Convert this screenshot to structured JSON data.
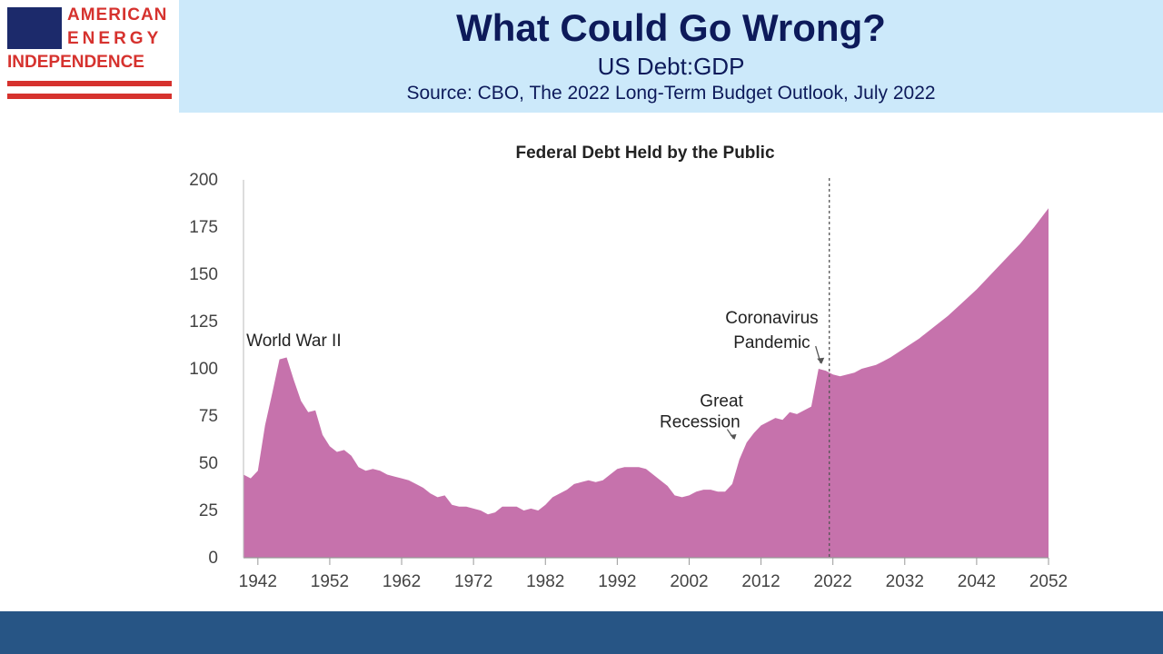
{
  "header": {
    "logo_line1": "AMERICAN",
    "logo_line2": "ENERGY",
    "logo_line3": "INDEPENDENCE",
    "title": "What Could Go Wrong?",
    "subtitle": "US Debt:GDP",
    "source": "Source: CBO, The 2022 Long-Term Budget Outlook, July 2022"
  },
  "colors": {
    "header_band": "#cce9fa",
    "title_text": "#0d1a5a",
    "footer_band": "#275585",
    "area_fill": "#c672ac",
    "logo_red": "#d6322e",
    "logo_blue": "#1c2a6b"
  },
  "chart_data": {
    "type": "area",
    "title": "Federal Debt Held by the Public",
    "xlabel": "",
    "ylabel": "",
    "xlim": [
      1940,
      2052
    ],
    "ylim": [
      0,
      200
    ],
    "x_ticks": [
      "1942",
      "1952",
      "1962",
      "1972",
      "1982",
      "1992",
      "2002",
      "2012",
      "2022",
      "2032",
      "2042",
      "2052"
    ],
    "y_ticks": [
      "0",
      "25",
      "50",
      "75",
      "100",
      "125",
      "150",
      "175",
      "200"
    ],
    "grid": false,
    "projection_marker_year": 2021.5,
    "series": [
      {
        "x": [
          1940,
          1941,
          1942,
          1943,
          1944,
          1945,
          1946,
          1947,
          1948,
          1949,
          1950,
          1951,
          1952,
          1953,
          1954,
          1955,
          1956,
          1957,
          1958,
          1959,
          1960,
          1961,
          1962,
          1963,
          1964,
          1965,
          1966,
          1967,
          1968,
          1969,
          1970,
          1971,
          1972,
          1973,
          1974,
          1975,
          1976,
          1977,
          1978,
          1979,
          1980,
          1981,
          1982,
          1983,
          1984,
          1985,
          1986,
          1987,
          1988,
          1989,
          1990,
          1991,
          1992,
          1993,
          1994,
          1995,
          1996,
          1997,
          1998,
          1999,
          2000,
          2001,
          2002,
          2003,
          2004,
          2005,
          2006,
          2007,
          2008,
          2009,
          2010,
          2011,
          2012,
          2013,
          2014,
          2015,
          2016,
          2017,
          2018,
          2019,
          2020,
          2021,
          2022,
          2023,
          2024,
          2025,
          2026,
          2027,
          2028,
          2029,
          2030,
          2032,
          2034,
          2036,
          2038,
          2040,
          2042,
          2044,
          2046,
          2048,
          2050,
          2052
        ],
        "values": [
          44,
          42,
          46,
          70,
          87,
          105,
          106,
          94,
          83,
          77,
          78,
          65,
          59,
          56,
          57,
          54,
          48,
          46,
          47,
          46,
          44,
          43,
          42,
          41,
          39,
          37,
          34,
          32,
          33,
          28,
          27,
          27,
          26,
          25,
          23,
          24,
          27,
          27,
          27,
          25,
          26,
          25,
          28,
          32,
          34,
          36,
          39,
          40,
          41,
          40,
          41,
          44,
          47,
          48,
          48,
          48,
          47,
          44,
          41,
          38,
          33,
          32,
          33,
          35,
          36,
          36,
          35,
          35,
          39,
          52,
          61,
          66,
          70,
          72,
          74,
          73,
          77,
          76,
          78,
          80,
          100,
          99,
          97,
          96,
          97,
          98,
          100,
          101,
          102,
          104,
          106,
          111,
          116,
          122,
          128,
          135,
          142,
          150,
          158,
          166,
          175,
          185
        ]
      }
    ],
    "annotations": [
      {
        "text": "World War II",
        "x": 1947,
        "y": 112
      },
      {
        "text": "Coronavirus",
        "x": 2013.5,
        "y": 124
      },
      {
        "text": "Pandemic",
        "x": 2013.5,
        "y": 111
      },
      {
        "text": "Great",
        "x": 2006.5,
        "y": 80
      },
      {
        "text": "Recession",
        "x": 2003.5,
        "y": 69
      }
    ]
  }
}
